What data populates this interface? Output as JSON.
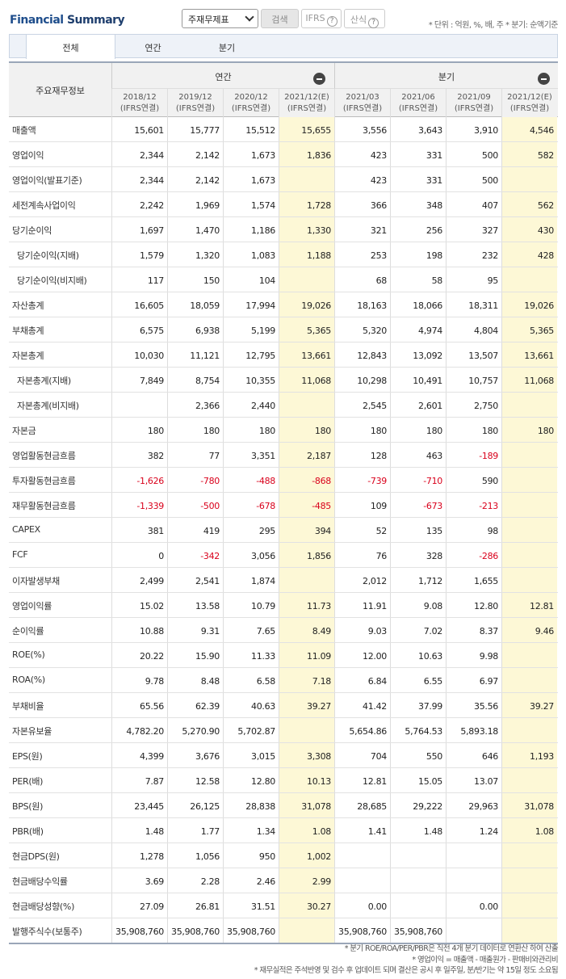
{
  "header": {
    "brand_part1": "Financial",
    "brand_part2": " Summary",
    "select_value": "주재무제표",
    "search_label": "검색",
    "ifrs_label": "IFRS",
    "sansik_label": "산식",
    "help_glyph": "?",
    "unit_note": "* 단위 : 억원, %, 배, 주    * 분기: 순액기준"
  },
  "tabs": [
    {
      "label": "전체",
      "active": true
    },
    {
      "label": "연간",
      "active": false
    },
    {
      "label": "분기",
      "active": false
    }
  ],
  "table": {
    "row_header_label": "주요재무정보",
    "group_annual": "연간",
    "group_quarter": "분기",
    "columns": [
      {
        "period": "2018/12",
        "basis": "(IFRS연결)",
        "estimate": false
      },
      {
        "period": "2019/12",
        "basis": "(IFRS연결)",
        "estimate": false
      },
      {
        "period": "2020/12",
        "basis": "(IFRS연결)",
        "estimate": false
      },
      {
        "period": "2021/12(E)",
        "basis": "(IFRS연결)",
        "estimate": true
      },
      {
        "period": "2021/03",
        "basis": "(IFRS연결)",
        "estimate": false
      },
      {
        "period": "2021/06",
        "basis": "(IFRS연결)",
        "estimate": false
      },
      {
        "period": "2021/09",
        "basis": "(IFRS연결)",
        "estimate": false
      },
      {
        "period": "2021/12(E)",
        "basis": "(IFRS연결)",
        "estimate": true
      }
    ],
    "rows": [
      {
        "label": "매출액",
        "sub": false,
        "values": [
          "15,601",
          "15,777",
          "15,512",
          "15,655",
          "3,556",
          "3,643",
          "3,910",
          "4,546"
        ]
      },
      {
        "label": "영업이익",
        "sub": false,
        "values": [
          "2,344",
          "2,142",
          "1,673",
          "1,836",
          "423",
          "331",
          "500",
          "582"
        ]
      },
      {
        "label": "영업이익(발표기준)",
        "sub": false,
        "values": [
          "2,344",
          "2,142",
          "1,673",
          "",
          "423",
          "331",
          "500",
          ""
        ]
      },
      {
        "label": "세전계속사업이익",
        "sub": false,
        "values": [
          "2,242",
          "1,969",
          "1,574",
          "1,728",
          "366",
          "348",
          "407",
          "562"
        ]
      },
      {
        "label": "당기순이익",
        "sub": false,
        "values": [
          "1,697",
          "1,470",
          "1,186",
          "1,330",
          "321",
          "256",
          "327",
          "430"
        ]
      },
      {
        "label": "당기순이익(지배)",
        "sub": true,
        "values": [
          "1,579",
          "1,320",
          "1,083",
          "1,188",
          "253",
          "198",
          "232",
          "428"
        ]
      },
      {
        "label": "당기순이익(비지배)",
        "sub": true,
        "values": [
          "117",
          "150",
          "104",
          "",
          "68",
          "58",
          "95",
          ""
        ]
      },
      {
        "label": "자산총계",
        "sub": false,
        "values": [
          "16,605",
          "18,059",
          "17,994",
          "19,026",
          "18,163",
          "18,066",
          "18,311",
          "19,026"
        ]
      },
      {
        "label": "부채총계",
        "sub": false,
        "values": [
          "6,575",
          "6,938",
          "5,199",
          "5,365",
          "5,320",
          "4,974",
          "4,804",
          "5,365"
        ]
      },
      {
        "label": "자본총계",
        "sub": false,
        "values": [
          "10,030",
          "11,121",
          "12,795",
          "13,661",
          "12,843",
          "13,092",
          "13,507",
          "13,661"
        ]
      },
      {
        "label": "자본총계(지배)",
        "sub": true,
        "values": [
          "7,849",
          "8,754",
          "10,355",
          "11,068",
          "10,298",
          "10,491",
          "10,757",
          "11,068"
        ]
      },
      {
        "label": "자본총계(비지배)",
        "sub": true,
        "values": [
          "",
          "2,366",
          "2,440",
          "",
          "2,545",
          "2,601",
          "2,750",
          ""
        ]
      },
      {
        "label": "자본금",
        "sub": false,
        "values": [
          "180",
          "180",
          "180",
          "180",
          "180",
          "180",
          "180",
          "180"
        ]
      },
      {
        "label": "영업활동현금흐름",
        "sub": false,
        "values": [
          "382",
          "77",
          "3,351",
          "2,187",
          "128",
          "463",
          "-189",
          ""
        ]
      },
      {
        "label": "투자활동현금흐름",
        "sub": false,
        "values": [
          "-1,626",
          "-780",
          "-488",
          "-868",
          "-739",
          "-710",
          "590",
          ""
        ]
      },
      {
        "label": "재무활동현금흐름",
        "sub": false,
        "values": [
          "-1,339",
          "-500",
          "-678",
          "-485",
          "109",
          "-673",
          "-213",
          ""
        ]
      },
      {
        "label": "CAPEX",
        "sub": false,
        "values": [
          "381",
          "419",
          "295",
          "394",
          "52",
          "135",
          "98",
          ""
        ]
      },
      {
        "label": "FCF",
        "sub": false,
        "values": [
          "0",
          "-342",
          "3,056",
          "1,856",
          "76",
          "328",
          "-286",
          ""
        ]
      },
      {
        "label": "이자발생부채",
        "sub": false,
        "values": [
          "2,499",
          "2,541",
          "1,874",
          "",
          "2,012",
          "1,712",
          "1,655",
          ""
        ]
      },
      {
        "label": "영업이익률",
        "sub": false,
        "values": [
          "15.02",
          "13.58",
          "10.79",
          "11.73",
          "11.91",
          "9.08",
          "12.80",
          "12.81"
        ]
      },
      {
        "label": "순이익률",
        "sub": false,
        "values": [
          "10.88",
          "9.31",
          "7.65",
          "8.49",
          "9.03",
          "7.02",
          "8.37",
          "9.46"
        ]
      },
      {
        "label": "ROE(%)",
        "sub": false,
        "values": [
          "20.22",
          "15.90",
          "11.33",
          "11.09",
          "12.00",
          "10.63",
          "9.98",
          ""
        ]
      },
      {
        "label": "ROA(%)",
        "sub": false,
        "values": [
          "9.78",
          "8.48",
          "6.58",
          "7.18",
          "6.84",
          "6.55",
          "6.97",
          ""
        ]
      },
      {
        "label": "부채비율",
        "sub": false,
        "values": [
          "65.56",
          "62.39",
          "40.63",
          "39.27",
          "41.42",
          "37.99",
          "35.56",
          "39.27"
        ]
      },
      {
        "label": "자본유보율",
        "sub": false,
        "values": [
          "4,782.20",
          "5,270.90",
          "5,702.87",
          "",
          "5,654.86",
          "5,764.53",
          "5,893.18",
          ""
        ]
      },
      {
        "label": "EPS(원)",
        "sub": false,
        "values": [
          "4,399",
          "3,676",
          "3,015",
          "3,308",
          "704",
          "550",
          "646",
          "1,193"
        ]
      },
      {
        "label": "PER(배)",
        "sub": false,
        "values": [
          "7.87",
          "12.58",
          "12.80",
          "10.13",
          "12.81",
          "15.05",
          "13.07",
          ""
        ]
      },
      {
        "label": "BPS(원)",
        "sub": false,
        "values": [
          "23,445",
          "26,125",
          "28,838",
          "31,078",
          "28,685",
          "29,222",
          "29,963",
          "31,078"
        ]
      },
      {
        "label": "PBR(배)",
        "sub": false,
        "values": [
          "1.48",
          "1.77",
          "1.34",
          "1.08",
          "1.41",
          "1.48",
          "1.24",
          "1.08"
        ]
      },
      {
        "label": "현금DPS(원)",
        "sub": false,
        "values": [
          "1,278",
          "1,056",
          "950",
          "1,002",
          "",
          "",
          "",
          ""
        ]
      },
      {
        "label": "현금배당수익률",
        "sub": false,
        "values": [
          "3.69",
          "2.28",
          "2.46",
          "2.99",
          "",
          "",
          "",
          ""
        ]
      },
      {
        "label": "현금배당성향(%)",
        "sub": false,
        "values": [
          "27.09",
          "26.81",
          "31.51",
          "30.27",
          "0.00",
          "",
          "0.00",
          ""
        ]
      },
      {
        "label": "발행주식수(보통주)",
        "sub": false,
        "values": [
          "35,908,760",
          "35,908,760",
          "35,908,760",
          "",
          "35,908,760",
          "35,908,760",
          "",
          ""
        ]
      }
    ]
  },
  "footnotes": [
    "* 분기 ROE/ROA/PER/PBR은 직전 4개 분기 데이터로 연환산 하여 산출",
    "* 영업이익 = 매출액 - 매출원가 - 판매비와관리비",
    "* 재무실적은 주석반영 및 검수 후 업데이트 되며 결산은 공시 후 일주일, 분/반기는 약 15일 정도 소요됨"
  ],
  "colors": {
    "estimate_bg": "#fdf8d6",
    "negative_text": "#d9001b",
    "brand_blue": "#1f4e8c"
  }
}
